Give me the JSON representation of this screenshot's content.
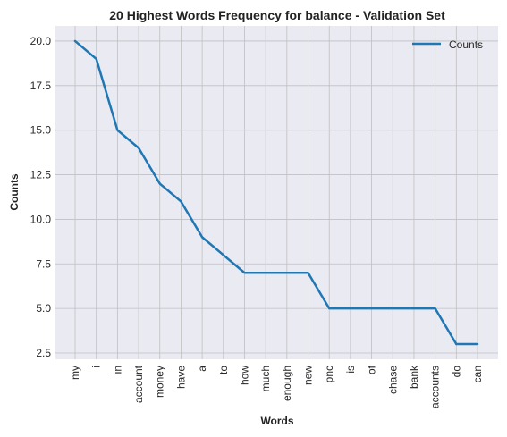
{
  "chart_data": {
    "type": "line",
    "title": "20 Highest Words Frequency for balance - Validation Set",
    "xlabel": "Words",
    "ylabel": "Counts",
    "categories": [
      "my",
      "i",
      "in",
      "account",
      "money",
      "have",
      "a",
      "to",
      "how",
      "much",
      "enough",
      "new",
      "pnc",
      "is",
      "of",
      "chase",
      "bank",
      "accounts",
      "do",
      "can"
    ],
    "series": [
      {
        "name": "Counts",
        "values": [
          20,
          19,
          15,
          14,
          12,
          11,
          9,
          8,
          7,
          7,
          7,
          7,
          5,
          5,
          5,
          5,
          5,
          5,
          3,
          3
        ]
      }
    ],
    "ylim": [
      2.15,
      20.85
    ],
    "yticks": [
      "2.5",
      "5.0",
      "7.5",
      "10.0",
      "12.5",
      "15.0",
      "17.5",
      "20.0"
    ],
    "grid": true,
    "legend": "top-right",
    "colors": {
      "line": "#1f77b4",
      "plot_background": "#eaeaf2",
      "grid": "#c0c0c0"
    }
  }
}
